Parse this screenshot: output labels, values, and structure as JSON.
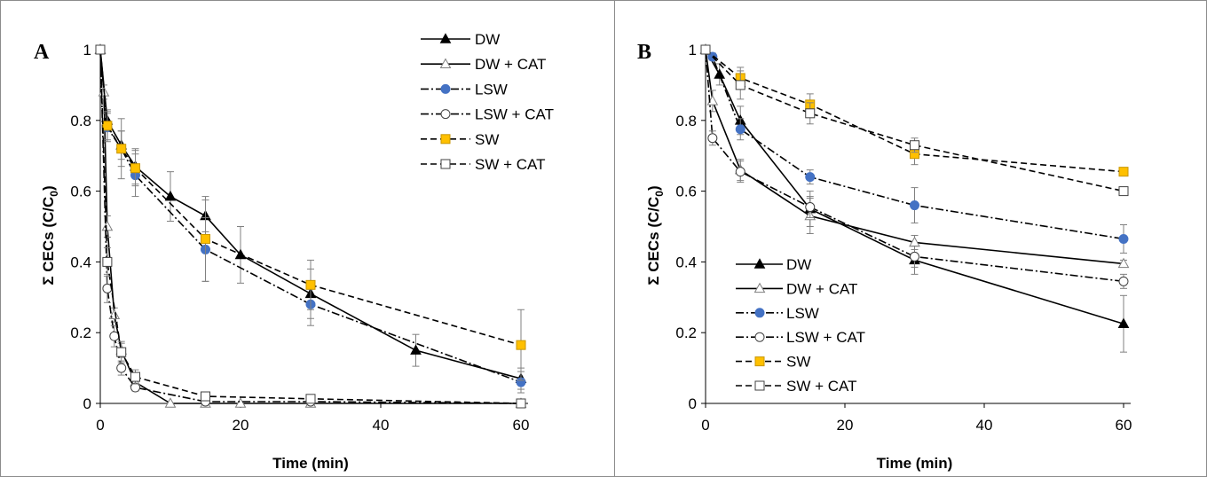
{
  "chart_data": [
    {
      "panel_label": "A",
      "type": "line",
      "xlabel": "Time (min)",
      "ylabel_main": "Σ CECs (C/C",
      "ylabel_sub": "0",
      "ylabel_close": ")",
      "xlim": [
        0,
        60
      ],
      "ylim": [
        0,
        1
      ],
      "x_ticks": [
        0,
        20,
        40,
        60
      ],
      "y_ticks": [
        0,
        0.2,
        0.4,
        0.6,
        0.8,
        1
      ],
      "y_tick_labels": [
        "0",
        "0.2",
        "0.4",
        "0.6",
        "0.8",
        "1"
      ],
      "grid": false,
      "legend_position": "top-right",
      "series": [
        {
          "name": "DW",
          "line": "solid",
          "marker": "triangle-filled",
          "x": [
            0,
            1,
            3,
            5,
            10,
            15,
            20,
            30,
            45,
            60
          ],
          "y": [
            1.0,
            0.8,
            0.73,
            0.67,
            0.585,
            0.53,
            0.42,
            0.31,
            0.15,
            0.07
          ],
          "err": [
            0,
            0.03,
            0.04,
            0.05,
            0.07,
            0.045,
            0.08,
            0.07,
            0.045,
            0.03
          ]
        },
        {
          "name": "DW + CAT",
          "line": "solid",
          "marker": "triangle-open",
          "x": [
            0,
            0.5,
            1,
            2,
            3,
            5,
            10,
            15,
            20,
            30,
            60
          ],
          "y": [
            1.0,
            0.88,
            0.5,
            0.25,
            0.15,
            0.06,
            0.0,
            0.0,
            0.0,
            0.0,
            0.0
          ],
          "err": [
            0,
            0.02,
            0.03,
            0.02,
            0.02,
            0.01,
            0,
            0,
            0,
            0,
            0
          ]
        },
        {
          "name": "LSW",
          "line": "dashdot",
          "marker": "circle-filled",
          "x": [
            0,
            1,
            3,
            5,
            15,
            30,
            60
          ],
          "y": [
            1.0,
            0.78,
            0.72,
            0.645,
            0.435,
            0.28,
            0.06
          ],
          "err": [
            0,
            0.04,
            0.05,
            0.06,
            0.09,
            0.06,
            0.03
          ]
        },
        {
          "name": "LSW + CAT",
          "line": "dashdot",
          "marker": "circle-open",
          "x": [
            0,
            1,
            2,
            3,
            5,
            15,
            30,
            60
          ],
          "y": [
            1.0,
            0.325,
            0.19,
            0.1,
            0.045,
            0.005,
            0.005,
            0.0
          ],
          "err": [
            0,
            0.04,
            0.03,
            0.02,
            0.01,
            0,
            0,
            0
          ]
        },
        {
          "name": "SW",
          "line": "dashed",
          "marker": "square-filled",
          "x": [
            0,
            1,
            3,
            5,
            15,
            30,
            60
          ],
          "y": [
            1.0,
            0.785,
            0.72,
            0.665,
            0.465,
            0.335,
            0.165
          ],
          "err": [
            0,
            0.04,
            0.085,
            0.05,
            0.12,
            0.07,
            0.1
          ]
        },
        {
          "name": "SW + CAT",
          "line": "dashed",
          "marker": "square-open",
          "x": [
            0,
            1,
            3,
            5,
            15,
            30,
            60
          ],
          "y": [
            1.0,
            0.4,
            0.145,
            0.075,
            0.02,
            0.013,
            0.0
          ],
          "err": [
            0,
            0.04,
            0.03,
            0.02,
            0.01,
            0.005,
            0
          ]
        }
      ]
    },
    {
      "panel_label": "B",
      "type": "line",
      "xlabel": "Time (min)",
      "ylabel_main": "Σ CECs (C/C",
      "ylabel_sub": "0",
      "ylabel_close": ")",
      "xlim": [
        0,
        60
      ],
      "ylim": [
        0,
        1
      ],
      "x_ticks": [
        0,
        20,
        40,
        60
      ],
      "y_ticks": [
        0,
        0.2,
        0.4,
        0.6,
        0.8,
        1
      ],
      "y_tick_labels": [
        "0",
        "0.2",
        "0.4",
        "0.6",
        "0.8",
        "1"
      ],
      "grid": false,
      "legend_position": "bottom-left",
      "series": [
        {
          "name": "DW",
          "line": "solid",
          "marker": "triangle-filled",
          "x": [
            0,
            2,
            5,
            15,
            30,
            60
          ],
          "y": [
            1.0,
            0.93,
            0.8,
            0.55,
            0.405,
            0.225
          ],
          "err": [
            0,
            0.03,
            0.04,
            0.05,
            0.04,
            0.08
          ]
        },
        {
          "name": "DW + CAT",
          "line": "solid",
          "marker": "triangle-open",
          "x": [
            0,
            1,
            5,
            15,
            30,
            60
          ],
          "y": [
            1.0,
            0.855,
            0.66,
            0.53,
            0.455,
            0.395
          ],
          "err": [
            0,
            0.03,
            0.03,
            0.05,
            0.02,
            0.01
          ]
        },
        {
          "name": "LSW",
          "line": "dashdot",
          "marker": "circle-filled",
          "x": [
            0,
            1,
            5,
            15,
            30,
            60
          ],
          "y": [
            1.0,
            0.98,
            0.775,
            0.64,
            0.56,
            0.465
          ],
          "err": [
            0,
            0.01,
            0.03,
            0.02,
            0.05,
            0.04
          ]
        },
        {
          "name": "LSW + CAT",
          "line": "dashdot",
          "marker": "circle-open",
          "x": [
            0,
            1,
            5,
            15,
            30,
            60
          ],
          "y": [
            1.0,
            0.75,
            0.655,
            0.555,
            0.415,
            0.345
          ],
          "err": [
            0,
            0.02,
            0.03,
            0.03,
            0.03,
            0.02
          ]
        },
        {
          "name": "SW",
          "line": "dashed",
          "marker": "square-filled",
          "x": [
            0,
            5,
            15,
            30,
            60
          ],
          "y": [
            1.0,
            0.92,
            0.845,
            0.705,
            0.655
          ],
          "err": [
            0,
            0.03,
            0.03,
            0.03,
            0
          ]
        },
        {
          "name": "SW + CAT",
          "line": "dashed",
          "marker": "square-open",
          "x": [
            0,
            5,
            15,
            30,
            60
          ],
          "y": [
            1.0,
            0.9,
            0.82,
            0.73,
            0.6
          ],
          "err": [
            0,
            0.04,
            0.03,
            0.02,
            0
          ]
        }
      ]
    }
  ]
}
